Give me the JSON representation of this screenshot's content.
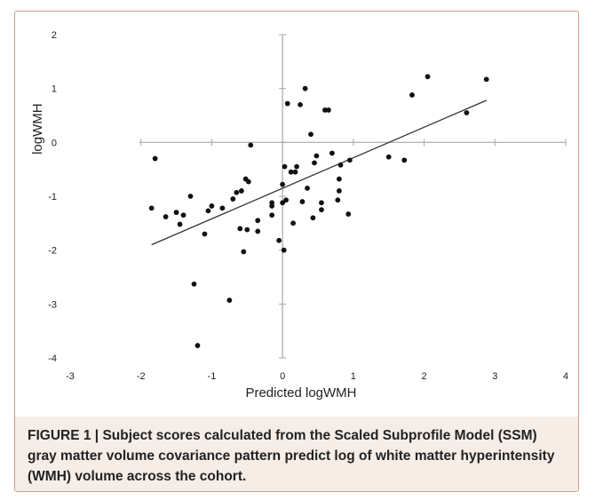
{
  "chart_data": {
    "type": "scatter",
    "xlabel": "Predicted logWMH",
    "ylabel": "logWMH",
    "xlim": [
      -3,
      4
    ],
    "ylim": [
      -4,
      2
    ],
    "x_ticks": [
      "-3",
      "-2",
      "-1",
      "0",
      "1",
      "2",
      "3",
      "4"
    ],
    "y_ticks": [
      "2",
      "1",
      "0",
      "-1",
      "-2",
      "-3",
      "-4"
    ],
    "grid": false,
    "points": [
      {
        "x": -1.85,
        "y": -1.22
      },
      {
        "x": -1.8,
        "y": -0.3
      },
      {
        "x": -1.65,
        "y": -1.38
      },
      {
        "x": -1.5,
        "y": -1.3
      },
      {
        "x": -1.45,
        "y": -1.52
      },
      {
        "x": -1.4,
        "y": -1.35
      },
      {
        "x": -1.3,
        "y": -1.0
      },
      {
        "x": -1.25,
        "y": -2.63
      },
      {
        "x": -1.2,
        "y": -3.77
      },
      {
        "x": -1.1,
        "y": -1.7
      },
      {
        "x": -1.05,
        "y": -1.27
      },
      {
        "x": -1.0,
        "y": -1.18
      },
      {
        "x": -0.85,
        "y": -1.22
      },
      {
        "x": -0.75,
        "y": -2.93
      },
      {
        "x": -0.7,
        "y": -1.05
      },
      {
        "x": -0.65,
        "y": -0.93
      },
      {
        "x": -0.6,
        "y": -1.6
      },
      {
        "x": -0.58,
        "y": -0.9
      },
      {
        "x": -0.55,
        "y": -2.03
      },
      {
        "x": -0.52,
        "y": -0.68
      },
      {
        "x": -0.5,
        "y": -1.62
      },
      {
        "x": -0.48,
        "y": -0.73
      },
      {
        "x": -0.45,
        "y": -0.05
      },
      {
        "x": -0.35,
        "y": -1.45
      },
      {
        "x": -0.35,
        "y": -1.65
      },
      {
        "x": -0.15,
        "y": -1.12
      },
      {
        "x": -0.15,
        "y": -1.18
      },
      {
        "x": -0.15,
        "y": -1.35
      },
      {
        "x": -0.05,
        "y": -1.82
      },
      {
        "x": 0.0,
        "y": -0.78
      },
      {
        "x": 0.0,
        "y": -1.12
      },
      {
        "x": 0.02,
        "y": -2.0
      },
      {
        "x": 0.03,
        "y": -0.45
      },
      {
        "x": 0.05,
        "y": -1.07
      },
      {
        "x": 0.07,
        "y": 0.72
      },
      {
        "x": 0.12,
        "y": -0.55
      },
      {
        "x": 0.15,
        "y": -1.5
      },
      {
        "x": 0.18,
        "y": -0.55
      },
      {
        "x": 0.2,
        "y": -0.45
      },
      {
        "x": 0.25,
        "y": 0.7
      },
      {
        "x": 0.28,
        "y": -1.1
      },
      {
        "x": 0.32,
        "y": 1.0
      },
      {
        "x": 0.35,
        "y": -0.85
      },
      {
        "x": 0.4,
        "y": 0.15
      },
      {
        "x": 0.43,
        "y": -1.4
      },
      {
        "x": 0.45,
        "y": -0.38
      },
      {
        "x": 0.48,
        "y": -0.25
      },
      {
        "x": 0.55,
        "y": -1.12
      },
      {
        "x": 0.55,
        "y": -1.25
      },
      {
        "x": 0.6,
        "y": 0.6
      },
      {
        "x": 0.65,
        "y": 0.6
      },
      {
        "x": 0.7,
        "y": -0.2
      },
      {
        "x": 0.78,
        "y": -1.07
      },
      {
        "x": 0.8,
        "y": -0.68
      },
      {
        "x": 0.8,
        "y": -0.9
      },
      {
        "x": 0.82,
        "y": -0.42
      },
      {
        "x": 0.93,
        "y": -1.33
      },
      {
        "x": 0.95,
        "y": -0.33
      },
      {
        "x": 1.5,
        "y": -0.27
      },
      {
        "x": 1.72,
        "y": -0.33
      },
      {
        "x": 1.83,
        "y": 0.88
      },
      {
        "x": 2.05,
        "y": 1.22
      },
      {
        "x": 2.6,
        "y": 0.55
      },
      {
        "x": 2.88,
        "y": 1.17
      }
    ],
    "trendline": {
      "x": [
        -1.85,
        2.88
      ],
      "y": [
        -1.9,
        0.78
      ]
    }
  },
  "caption": {
    "label": "FIGURE 1 | ",
    "text": "Subject scores calculated from the Scaled Subprofile Model (SSM) gray matter volume covariance pattern predict log of white matter hyperintensity (WMH) volume across the cohort."
  }
}
